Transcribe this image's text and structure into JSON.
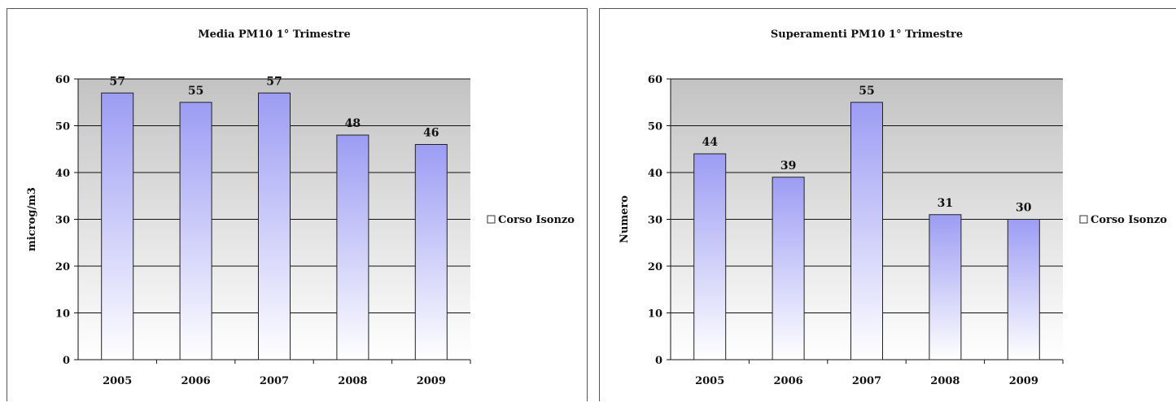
{
  "chart_data": [
    {
      "type": "bar",
      "title": "Media PM10 1° Trimestre",
      "xlabel": "",
      "ylabel": "microg/m3",
      "categories": [
        "2005",
        "2006",
        "2007",
        "2008",
        "2009"
      ],
      "series": [
        {
          "name": "Corso Isonzo",
          "values": [
            57,
            55,
            57,
            48,
            46
          ]
        }
      ],
      "ylim": [
        0,
        60
      ],
      "yticks": [
        "0",
        "10",
        "20",
        "30",
        "40",
        "50",
        "60"
      ],
      "grid": true,
      "legend": "right",
      "colors": {
        "bar_top": "#9c9cf4",
        "bar_bottom": "#ffffff",
        "plot_top": "#c3c3c3",
        "plot_bottom": "#ffffff"
      }
    },
    {
      "type": "bar",
      "title": "Superamenti PM10 1° Trimestre",
      "xlabel": "",
      "ylabel": "Numero",
      "categories": [
        "2005",
        "2006",
        "2007",
        "2008",
        "2009"
      ],
      "series": [
        {
          "name": "Corso Isonzo",
          "values": [
            44,
            39,
            55,
            31,
            30
          ]
        }
      ],
      "ylim": [
        0,
        60
      ],
      "yticks": [
        "0",
        "10",
        "20",
        "30",
        "40",
        "50",
        "60"
      ],
      "grid": true,
      "legend": "right",
      "colors": {
        "bar_top": "#9c9cf4",
        "bar_bottom": "#ffffff",
        "plot_top": "#c3c3c3",
        "plot_bottom": "#ffffff"
      }
    }
  ]
}
